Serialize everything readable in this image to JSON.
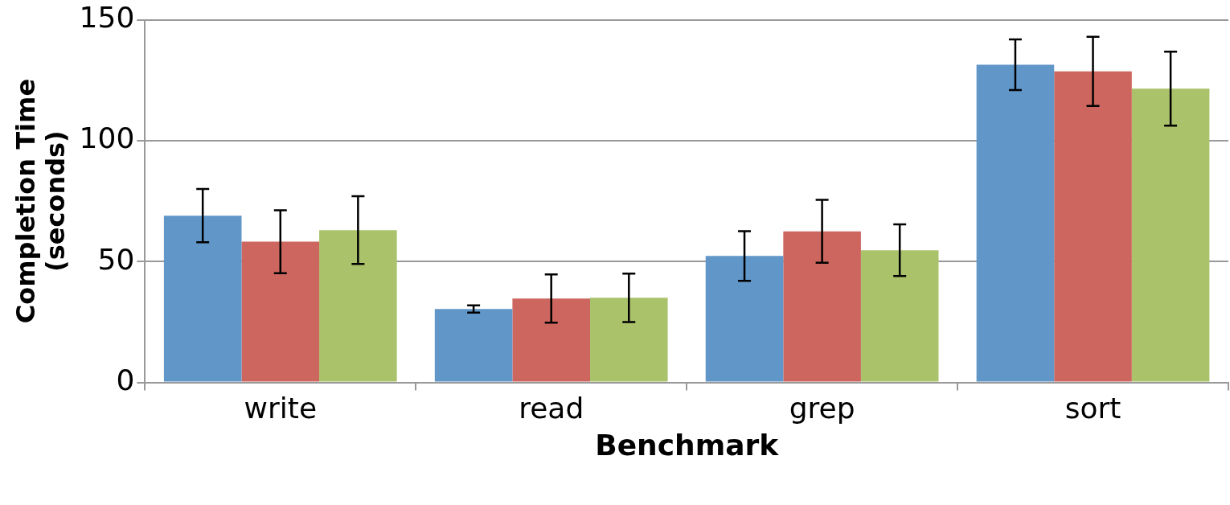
{
  "chart_data": {
    "type": "bar",
    "xlabel": "Benchmark",
    "ylabel": "Completion Time (seconds)",
    "categories": [
      "write",
      "read",
      "grep",
      "sort"
    ],
    "series": [
      {
        "color": "#6196c9",
        "values": [
          69,
          30.4,
          52.3,
          131.4
        ],
        "errors": [
          11,
          1.5,
          10.3,
          10.5
        ]
      },
      {
        "color": "#cc665e",
        "values": [
          58.2,
          34.7,
          62.5,
          128.7
        ],
        "errors": [
          13,
          10,
          13,
          14.3
        ]
      },
      {
        "color": "#aac36b",
        "values": [
          63,
          35,
          54.7,
          121.5
        ],
        "errors": [
          14,
          10,
          10.7,
          15.3
        ]
      }
    ],
    "ylim": [
      0,
      150
    ],
    "yticks": [
      0,
      50,
      100,
      150
    ],
    "grid": "y",
    "legend": false
  }
}
